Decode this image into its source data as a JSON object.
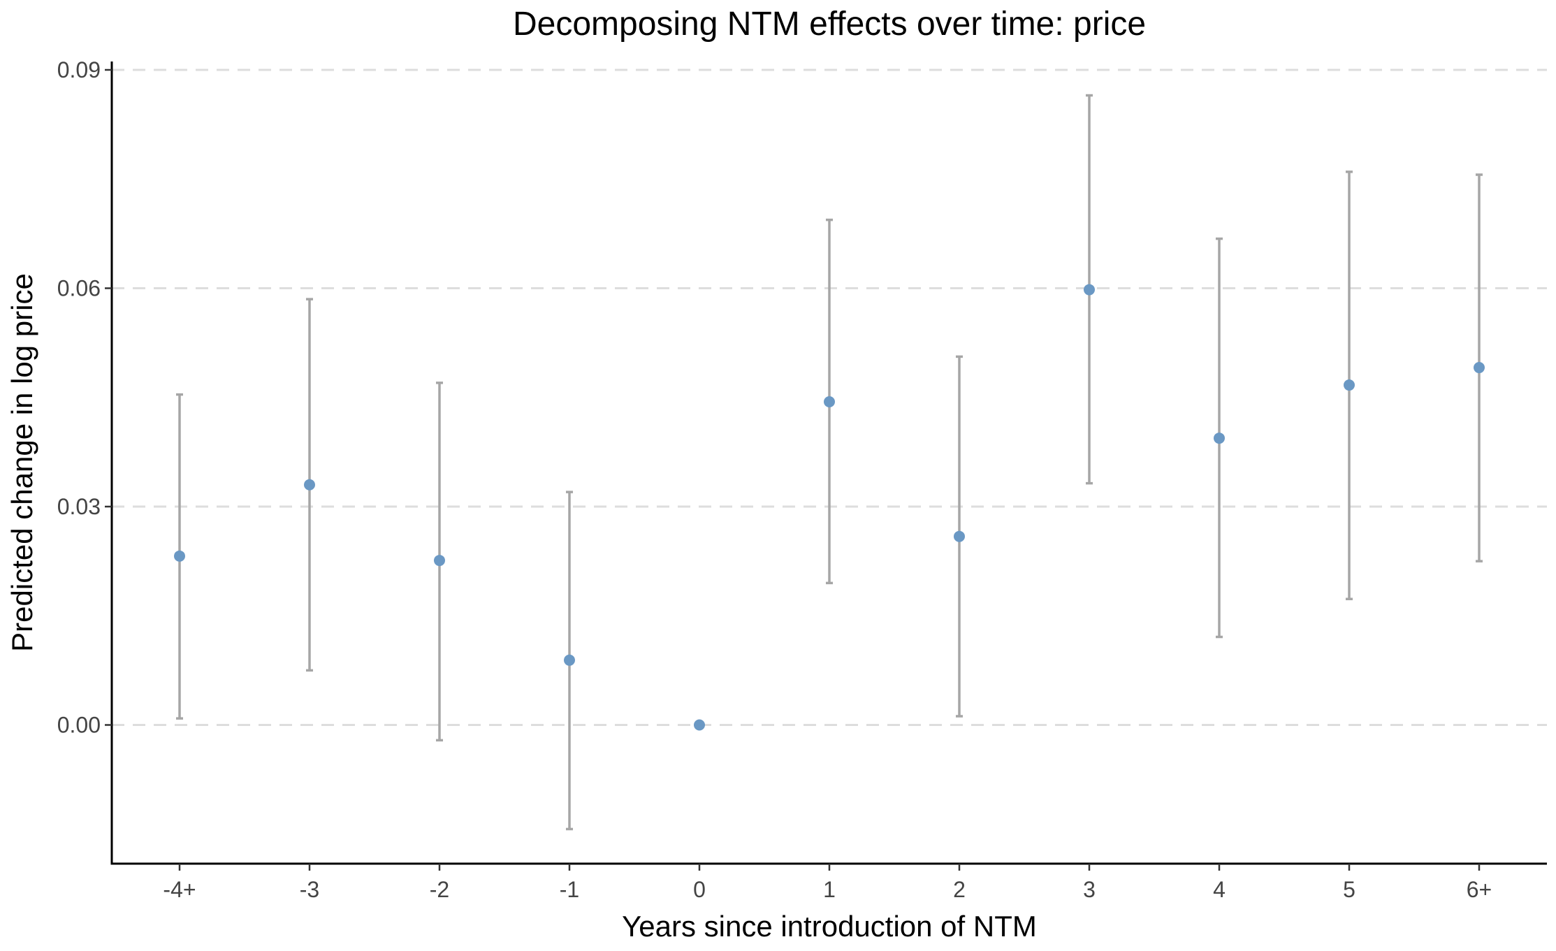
{
  "chart_data": {
    "type": "scatter",
    "title": "Decomposing NTM effects over time: price",
    "xlabel": "Years since introduction of NTM",
    "ylabel": "Predicted change in log price",
    "categories": [
      "-4+",
      "-3",
      "-2",
      "-1",
      "0",
      "1",
      "2",
      "3",
      "4",
      "5",
      "6+"
    ],
    "series": [
      {
        "values": [
          0.0232,
          0.033,
          0.0226,
          0.0089,
          0.0,
          0.0444,
          0.0259,
          0.0598,
          0.0394,
          0.0467,
          0.0491
        ],
        "lower": [
          0.0009,
          0.0075,
          -0.0021,
          -0.0143,
          0.0,
          0.0195,
          0.0012,
          0.0332,
          0.0121,
          0.0173,
          0.0225
        ],
        "upper": [
          0.0454,
          0.0585,
          0.047,
          0.032,
          0.0,
          0.0694,
          0.0506,
          0.0865,
          0.0668,
          0.076,
          0.0756
        ]
      }
    ],
    "ylim": [
      -0.019,
      0.0915
    ],
    "yticks": [
      0.0,
      0.03,
      0.06,
      0.09
    ],
    "ytick_labels": [
      "0.00",
      "0.03",
      "0.06",
      "0.09"
    ],
    "grid": "horizontal-dashed",
    "colors": {
      "point": "#6a98c4",
      "errorbar": "#a6a6a6",
      "grid": "#dddddd"
    }
  }
}
